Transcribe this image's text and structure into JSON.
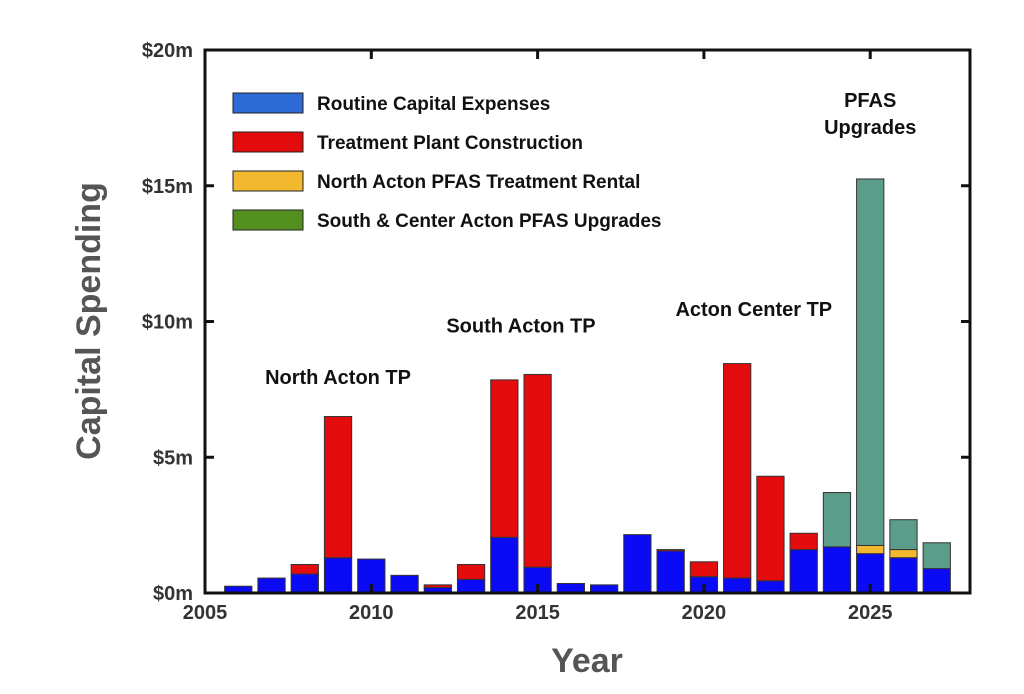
{
  "chart_data": {
    "type": "bar",
    "stacked": true,
    "xlabel": "Year",
    "ylabel": "Capital Spending",
    "xlim": [
      2005,
      2028
    ],
    "ylim": [
      0,
      20
    ],
    "x_ticks": [
      2005,
      2010,
      2015,
      2020,
      2025
    ],
    "x_tick_labels": [
      "2005",
      "2010",
      "2015",
      "2020",
      "2025"
    ],
    "y_ticks": [
      0,
      5,
      10,
      15,
      20
    ],
    "y_tick_labels": [
      "$0m",
      "$5m",
      "$10m",
      "$15m",
      "$20m"
    ],
    "grid": false,
    "legend_position": "top-left",
    "x": [
      2006,
      2007,
      2008,
      2009,
      2010,
      2011,
      2012,
      2013,
      2014,
      2015,
      2016,
      2017,
      2018,
      2019,
      2020,
      2021,
      2022,
      2023,
      2024,
      2025,
      2026,
      2027
    ],
    "series": [
      {
        "name": "Routine Capital Expenses",
        "color": "#0a0af5",
        "legend_color": "#2e6ad6",
        "values": [
          0.25,
          0.55,
          0.7,
          1.3,
          1.25,
          0.65,
          0.2,
          0.5,
          2.05,
          0.95,
          0.35,
          0.3,
          2.15,
          1.55,
          0.6,
          0.55,
          0.45,
          1.6,
          1.7,
          1.45,
          1.3,
          0.9
        ]
      },
      {
        "name": "Treatment Plant Construction",
        "color": "#e30b0b",
        "legend_color": "#e30b0b",
        "values": [
          0,
          0,
          0.35,
          5.2,
          0,
          0,
          0.1,
          0.55,
          5.8,
          7.1,
          0,
          0,
          0,
          0.05,
          0.55,
          7.9,
          3.85,
          0.6,
          0,
          0,
          0,
          0
        ]
      },
      {
        "name": "North Acton PFAS Treatment Rental",
        "color": "#f2b830",
        "legend_color": "#f2b830",
        "values": [
          0,
          0,
          0,
          0,
          0,
          0,
          0,
          0,
          0,
          0,
          0,
          0,
          0,
          0,
          0,
          0,
          0,
          0,
          0,
          0.3,
          0.3,
          0
        ]
      },
      {
        "name": "South & Center Acton PFAS Upgrades",
        "color": "#5b9c8a",
        "legend_color": "#54901f",
        "values": [
          0,
          0,
          0,
          0,
          0,
          0,
          0,
          0,
          0,
          0,
          0,
          0,
          0,
          0,
          0,
          0,
          0,
          0,
          2.0,
          13.5,
          1.1,
          0.95
        ]
      }
    ],
    "annotations": [
      {
        "text": "North Acton TP",
        "x": 2009,
        "y": 7.7
      },
      {
        "text": "South Acton TP",
        "x": 2014.5,
        "y": 9.6
      },
      {
        "text": "Acton Center TP",
        "x": 2021.5,
        "y": 10.2
      },
      {
        "text": "PFAS",
        "x": 2025,
        "y": 17.9
      },
      {
        "text": "Upgrades",
        "x": 2025,
        "y": 16.9
      }
    ]
  }
}
